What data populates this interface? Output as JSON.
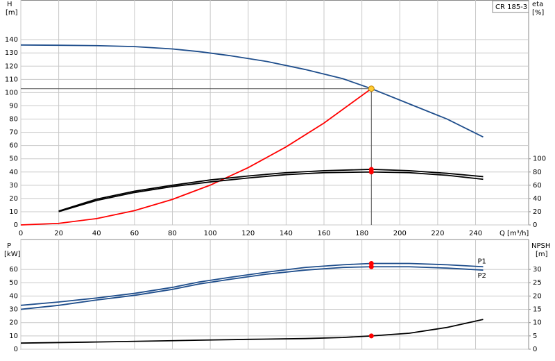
{
  "chart_data": [
    {
      "type": "line",
      "y_label": "H",
      "y_unit": "[m]",
      "y2_label": "eta",
      "y2_unit": "[%]",
      "x_label": "Q [m³/h]",
      "product": "CR 185-3",
      "xlim": [
        0,
        268
      ],
      "xticks": [
        0,
        20,
        40,
        60,
        80,
        100,
        120,
        140,
        160,
        180,
        200,
        220,
        240
      ],
      "ylim": [
        0,
        170
      ],
      "yticks": [
        0,
        10,
        20,
        30,
        40,
        50,
        60,
        70,
        80,
        90,
        100,
        110,
        120,
        130,
        140
      ],
      "y2lim": [
        0,
        340
      ],
      "y2ticks": [
        0,
        20,
        40,
        60,
        80,
        100
      ],
      "grid": true,
      "operating_point": {
        "x": 185,
        "y": 103,
        "color": "#ffcc33"
      },
      "series": [
        {
          "color": "#1f4e8c",
          "x": [
            0,
            20,
            40,
            60,
            80,
            94,
            110,
            130,
            150,
            170,
            185,
            205,
            225,
            244
          ],
          "values": [
            136,
            135.8,
            135.5,
            134.8,
            133,
            131,
            128,
            123.5,
            117.5,
            110.5,
            103,
            91.5,
            80,
            66.5
          ]
        },
        {
          "color": "#ff0000",
          "x": [
            0,
            20,
            40,
            60,
            80,
            100,
            120,
            140,
            160,
            185
          ],
          "values": [
            0,
            1.2,
            4.8,
            10.8,
            19.3,
            30.1,
            43.3,
            59,
            77,
            103
          ]
        },
        {
          "color": "#000000",
          "axis": "y2",
          "duty_marker": "#ff0000",
          "x": [
            20,
            40,
            60,
            80,
            100,
            120,
            140,
            160,
            185,
            205,
            225,
            244
          ],
          "values": [
            21,
            39,
            51,
            60,
            68,
            74,
            79,
            82,
            84,
            82,
            78,
            73
          ]
        },
        {
          "color": "#000000",
          "axis": "y2",
          "duty_marker": "#ff0000",
          "x": [
            20,
            40,
            60,
            80,
            100,
            120,
            140,
            160,
            185,
            205,
            225,
            244
          ],
          "values": [
            20,
            37,
            49,
            58,
            65,
            71,
            76,
            79,
            80,
            79,
            75,
            69
          ]
        }
      ]
    },
    {
      "type": "line",
      "y_label": "P",
      "y_unit": "[kW]",
      "y2_label": "NPSH",
      "y2_unit": "[m]",
      "xlim": [
        0,
        268
      ],
      "ylim": [
        0,
        82.5
      ],
      "yticks": [
        0,
        10,
        20,
        30,
        40,
        50,
        60
      ],
      "y2lim": [
        0,
        41.25
      ],
      "y2ticks": [
        0,
        5,
        10,
        15,
        20,
        25,
        30
      ],
      "grid": true,
      "series": [
        {
          "name": "P1",
          "color": "#1f4e8c",
          "duty_marker": "#ff0000",
          "x": [
            0,
            20,
            40,
            60,
            80,
            94,
            110,
            130,
            150,
            170,
            185,
            205,
            225,
            244
          ],
          "values": [
            33,
            35.5,
            38.5,
            42,
            46.5,
            50.5,
            54,
            58,
            61.5,
            63.5,
            64.5,
            64.5,
            63.5,
            62
          ]
        },
        {
          "name": "P2",
          "color": "#1f4e8c",
          "duty_marker": "#ff0000",
          "x": [
            0,
            20,
            40,
            60,
            80,
            94,
            110,
            130,
            150,
            170,
            185,
            205,
            225,
            244
          ],
          "values": [
            30,
            33,
            37,
            40.5,
            45,
            49,
            52.5,
            56.5,
            59.5,
            61.5,
            62,
            62,
            61,
            59.5
          ]
        },
        {
          "color": "#000000",
          "axis": "y2",
          "duty_marker": "#ff0000",
          "x": [
            0,
            40,
            80,
            94,
            120,
            150,
            170,
            185,
            205,
            225,
            244
          ],
          "values": [
            2.3,
            2.7,
            3.2,
            3.4,
            3.7,
            4.0,
            4.4,
            5,
            6,
            8.2,
            11.2
          ]
        }
      ]
    }
  ]
}
